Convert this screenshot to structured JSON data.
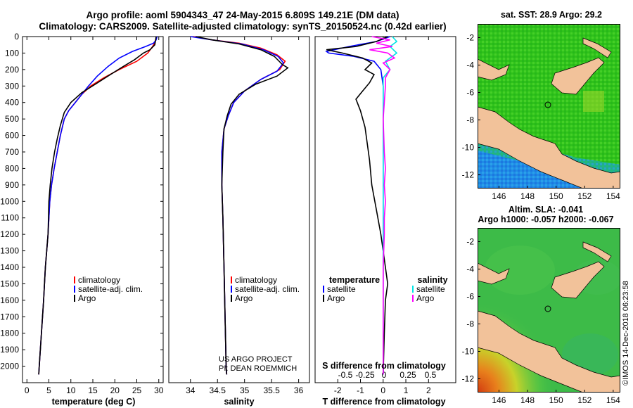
{
  "title": {
    "line1": "Argo profile: aoml 5904343_47 24-May-2015 6.809S 149.21E (DM data)",
    "line2": "Climatology: CARS2009. Satellite-adjusted climatology: synTS_20150524.nc (0.42d earlier)"
  },
  "credits": {
    "line1": "US ARGO PROJECT",
    "line2": "PI: DEAN ROEMMICH",
    "stamp": "©IMOS 14-Dec-2018 06:23:58"
  },
  "colors": {
    "climatology": "#ff0000",
    "satellite": "#0000ff",
    "argo": "#000000",
    "sal_sat": "#00e5e5",
    "sal_argo": "#ff00ff",
    "land": "#f2c29a"
  },
  "chart_data": [
    {
      "type": "line",
      "id": "temperature",
      "xlabel": "temperature (deg C)",
      "ylabel": "pressure",
      "xlim": [
        -1,
        31
      ],
      "ylim": [
        2100,
        0
      ],
      "xticks": [
        0,
        5,
        10,
        15,
        20,
        25,
        30
      ],
      "yticks": [
        0,
        100,
        200,
        300,
        400,
        500,
        600,
        700,
        800,
        900,
        1000,
        1100,
        1200,
        1300,
        1400,
        1500,
        1600,
        1700,
        1800,
        1900,
        2000
      ],
      "legend": [
        "climatology",
        "satellite-adj. clim.",
        "Argo"
      ],
      "series": [
        {
          "name": "climatology",
          "color": "#ff0000",
          "points": [
            [
              29.5,
              0
            ],
            [
              29.2,
              30
            ],
            [
              28.6,
              60
            ],
            [
              27.5,
              100
            ],
            [
              25,
              150
            ],
            [
              21,
              200
            ],
            [
              17.5,
              250
            ],
            [
              14.5,
              300
            ],
            [
              12.5,
              350
            ],
            [
              11,
              400
            ],
            [
              9.5,
              450
            ],
            [
              8.5,
              500
            ],
            [
              7.6,
              600
            ],
            [
              6.9,
              700
            ],
            [
              6.2,
              800
            ],
            [
              5.6,
              900
            ],
            [
              5.2,
              1000
            ],
            [
              4.8,
              1200
            ],
            [
              4.2,
              1400
            ],
            [
              3.8,
              1600
            ],
            [
              3.3,
              1800
            ],
            [
              2.8,
              2000
            ],
            [
              2.7,
              2050
            ]
          ]
        },
        {
          "name": "satellite-adj. clim.",
          "color": "#0000ff",
          "points": [
            [
              29.6,
              0
            ],
            [
              29.4,
              20
            ],
            [
              28.8,
              40
            ],
            [
              27,
              60
            ],
            [
              24,
              90
            ],
            [
              21,
              130
            ],
            [
              18.5,
              180
            ],
            [
              16,
              240
            ],
            [
              14,
              300
            ],
            [
              12.5,
              350
            ],
            [
              11,
              400
            ],
            [
              9.5,
              450
            ],
            [
              8.5,
              500
            ],
            [
              7.6,
              600
            ],
            [
              6.9,
              700
            ],
            [
              6.2,
              800
            ],
            [
              5.6,
              900
            ],
            [
              5.2,
              1000
            ],
            [
              4.8,
              1200
            ],
            [
              4.2,
              1400
            ],
            [
              3.8,
              1600
            ],
            [
              3.3,
              1800
            ],
            [
              2.8,
              2000
            ],
            [
              2.7,
              2050
            ]
          ]
        },
        {
          "name": "Argo",
          "color": "#000000",
          "points": [
            [
              29.4,
              0
            ],
            [
              29.1,
              50
            ],
            [
              28,
              80
            ],
            [
              26.5,
              100
            ],
            [
              24.5,
              140
            ],
            [
              22,
              180
            ],
            [
              19,
              230
            ],
            [
              15.5,
              290
            ],
            [
              12.5,
              340
            ],
            [
              10,
              400
            ],
            [
              8.5,
              460
            ],
            [
              7.6,
              540
            ],
            [
              6.9,
              620
            ],
            [
              6.3,
              700
            ],
            [
              5.7,
              800
            ],
            [
              5.3,
              900
            ],
            [
              5,
              1000
            ],
            [
              4.8,
              1200
            ],
            [
              4.2,
              1400
            ],
            [
              3.8,
              1600
            ],
            [
              3.3,
              1800
            ],
            [
              2.8,
              2000
            ],
            [
              2.7,
              2050
            ]
          ]
        }
      ]
    },
    {
      "type": "line",
      "id": "salinity",
      "xlabel": "salinity",
      "ylabel": "pressure",
      "xlim": [
        33.6,
        36.2
      ],
      "ylim": [
        2100,
        0
      ],
      "xticks": [
        34,
        34.5,
        35,
        35.5,
        36
      ],
      "legend": [
        "climatology",
        "satellite-adj. clim.",
        "Argo"
      ],
      "series": [
        {
          "name": "climatology",
          "color": "#ff0000",
          "points": [
            [
              34.05,
              0
            ],
            [
              34.4,
              20
            ],
            [
              34.9,
              40
            ],
            [
              35.3,
              70
            ],
            [
              35.6,
              110
            ],
            [
              35.75,
              150
            ],
            [
              35.65,
              200
            ],
            [
              35.3,
              260
            ],
            [
              35,
              330
            ],
            [
              34.8,
              400
            ],
            [
              34.7,
              480
            ],
            [
              34.62,
              560
            ],
            [
              34.58,
              700
            ],
            [
              34.58,
              900
            ],
            [
              34.6,
              1100
            ],
            [
              34.62,
              1400
            ],
            [
              34.64,
              1700
            ],
            [
              34.66,
              2000
            ],
            [
              34.67,
              2050
            ]
          ]
        },
        {
          "name": "satellite-adj. clim.",
          "color": "#0000ff",
          "points": [
            [
              34,
              0
            ],
            [
              34.4,
              20
            ],
            [
              34.95,
              45
            ],
            [
              35.35,
              80
            ],
            [
              35.62,
              120
            ],
            [
              35.72,
              160
            ],
            [
              35.6,
              210
            ],
            [
              35.3,
              260
            ],
            [
              35,
              330
            ],
            [
              34.8,
              400
            ],
            [
              34.7,
              480
            ],
            [
              34.62,
              560
            ],
            [
              34.58,
              700
            ],
            [
              34.58,
              900
            ],
            [
              34.6,
              1100
            ],
            [
              34.62,
              1400
            ],
            [
              34.64,
              1700
            ],
            [
              34.66,
              2000
            ],
            [
              34.67,
              2050
            ]
          ]
        },
        {
          "name": "Argo",
          "color": "#000000",
          "points": [
            [
              34.1,
              0
            ],
            [
              34.4,
              20
            ],
            [
              34.9,
              45
            ],
            [
              35.3,
              80
            ],
            [
              35.55,
              120
            ],
            [
              35.7,
              170
            ],
            [
              35.8,
              190
            ],
            [
              35.6,
              240
            ],
            [
              35.2,
              290
            ],
            [
              34.9,
              350
            ],
            [
              34.75,
              410
            ],
            [
              34.68,
              480
            ],
            [
              34.62,
              560
            ],
            [
              34.6,
              700
            ],
            [
              34.58,
              900
            ],
            [
              34.6,
              1100
            ],
            [
              34.62,
              1400
            ],
            [
              34.64,
              1700
            ],
            [
              34.66,
              2000
            ],
            [
              34.67,
              2050
            ]
          ]
        }
      ]
    },
    {
      "type": "line",
      "id": "difference",
      "xlabel": "T difference from climatology",
      "xlabel2": "S difference from climatology",
      "xlim": [
        -3,
        3.2
      ],
      "ylim": [
        2100,
        0
      ],
      "xticks": [
        -2,
        -1,
        0,
        1,
        2
      ],
      "xticks_salinity": [
        "-0.5",
        "-0.25",
        "0",
        "0.25",
        "0.5"
      ],
      "legend_left_title": "temperature",
      "legend_right_title": "salinity",
      "legend_left": [
        "satellite",
        "Argo"
      ],
      "legend_right": [
        "satellite",
        "Argo"
      ],
      "series": [
        {
          "name": "temperature satellite",
          "color": "#0000ff",
          "points": [
            [
              0.3,
              0
            ],
            [
              -0.3,
              30
            ],
            [
              -1.5,
              60
            ],
            [
              -2.5,
              90
            ],
            [
              -2.4,
              100
            ],
            [
              -1.3,
              120
            ],
            [
              -0.4,
              150
            ],
            [
              -0.1,
              200
            ],
            [
              0,
              300
            ],
            [
              0,
              400
            ],
            [
              0,
              600
            ],
            [
              0,
              900
            ],
            [
              0,
              1200
            ],
            [
              0,
              1500
            ],
            [
              0,
              1800
            ],
            [
              0,
              2050
            ]
          ]
        },
        {
          "name": "temperature Argo",
          "color": "#000000",
          "points": [
            [
              0.2,
              0
            ],
            [
              -0.3,
              30
            ],
            [
              -1.2,
              60
            ],
            [
              -2.5,
              80
            ],
            [
              -1.8,
              100
            ],
            [
              -0.9,
              130
            ],
            [
              -0.5,
              160
            ],
            [
              -0.8,
              200
            ],
            [
              -0.4,
              230
            ],
            [
              -0.6,
              280
            ],
            [
              -0.9,
              330
            ],
            [
              -1.2,
              380
            ],
            [
              -1.0,
              450
            ],
            [
              -0.8,
              550
            ],
            [
              -0.7,
              650
            ],
            [
              -0.6,
              750
            ],
            [
              -0.5,
              900
            ],
            [
              -0.3,
              1050
            ],
            [
              -0.1,
              1200
            ],
            [
              0.1,
              1400
            ],
            [
              0.2,
              1500
            ],
            [
              0.1,
              1600
            ],
            [
              0.05,
              1800
            ],
            [
              0,
              2050
            ]
          ]
        },
        {
          "name": "salinity satellite",
          "color": "#00e5e5",
          "points": [
            [
              0.4,
              0
            ],
            [
              0.6,
              30
            ],
            [
              0.3,
              60
            ],
            [
              0.6,
              100
            ],
            [
              0.1,
              150
            ],
            [
              0.3,
              200
            ],
            [
              0,
              250
            ],
            [
              0,
              400
            ],
            [
              0,
              600
            ],
            [
              0,
              900
            ],
            [
              0,
              1200
            ],
            [
              0,
              1500
            ],
            [
              0,
              1800
            ],
            [
              0,
              2050
            ]
          ]
        },
        {
          "name": "salinity Argo",
          "color": "#ff00ff",
          "points": [
            [
              -0.5,
              0
            ],
            [
              0.3,
              20
            ],
            [
              -0.3,
              40
            ],
            [
              0.4,
              60
            ],
            [
              -0.6,
              80
            ],
            [
              0.2,
              100
            ],
            [
              0.5,
              130
            ],
            [
              0.0,
              160
            ],
            [
              0.3,
              200
            ],
            [
              0.1,
              250
            ],
            [
              0.1,
              300
            ],
            [
              0.05,
              400
            ],
            [
              0,
              500
            ],
            [
              0.05,
              700
            ],
            [
              0.1,
              800
            ],
            [
              0.05,
              900
            ],
            [
              0.1,
              1000
            ],
            [
              0.05,
              1100
            ],
            [
              0.05,
              1200
            ],
            [
              0,
              1400
            ],
            [
              0,
              1600
            ],
            [
              0,
              2050
            ]
          ]
        }
      ]
    }
  ],
  "maps": [
    {
      "id": "sst",
      "title": "sat. SST: 28.9 Argo: 29.2",
      "xticks": [
        "146",
        "148",
        "150",
        "152",
        "154"
      ],
      "yticks": [
        "-2",
        "-4",
        "-6",
        "-8",
        "-10",
        "-12"
      ],
      "xlim": [
        144.5,
        154.5
      ],
      "ylim": [
        -13,
        -1
      ],
      "marker": [
        149.2,
        -6.8
      ]
    },
    {
      "id": "sla",
      "title": "Altim. SLA: -0.041",
      "title2": "Argo h1000: -0.057 h2000: -0.067",
      "xticks": [
        "146",
        "148",
        "150",
        "152",
        "154"
      ],
      "yticks": [
        "-2",
        "-4",
        "-6",
        "-8",
        "-10",
        "-12"
      ],
      "xlim": [
        144.5,
        154.5
      ],
      "ylim": [
        -13,
        -1
      ],
      "marker": [
        149.2,
        -6.8
      ]
    }
  ]
}
